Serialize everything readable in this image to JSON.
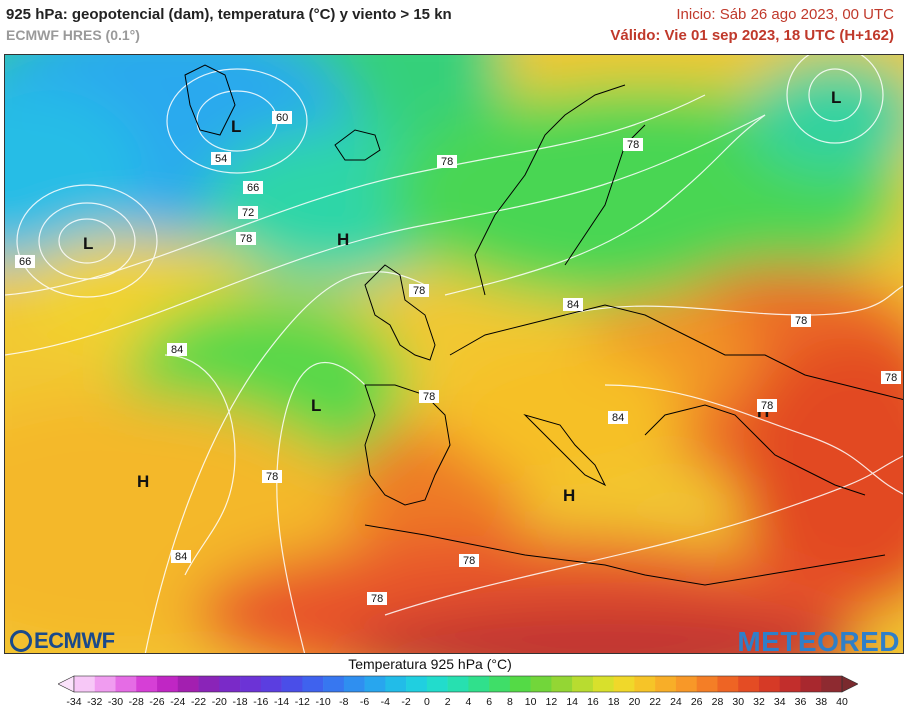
{
  "header": {
    "title": "925 hPa: geopotencial (dam), temperatura (°C) y viento > 15 kn",
    "model": "ECMWF HRES (0.1°)",
    "init": "Inicio: Sáb 26 ago 2023, 00 UTC",
    "valid": "Válido: Vie 01 sep 2023, 18 UTC (H+162)"
  },
  "map": {
    "pressure_centers": [
      "L",
      "L",
      "L",
      "H",
      "L",
      "H",
      "H",
      "H"
    ],
    "contour_labels": [
      "60",
      "54",
      "66",
      "72",
      "78",
      "66",
      "78",
      "84",
      "78",
      "78",
      "84",
      "78",
      "78",
      "84",
      "78",
      "78",
      "78",
      "84",
      "78",
      "78"
    ]
  },
  "logos": {
    "left": "ECMWF",
    "right": "METEORED"
  },
  "colorbar": {
    "title": "Temperatura 925 hPa (°C)",
    "ticks": [
      "-34",
      "-32",
      "-30",
      "-28",
      "-26",
      "-24",
      "-22",
      "-20",
      "-18",
      "-16",
      "-14",
      "-12",
      "-10",
      "-8",
      "-6",
      "-4",
      "-2",
      "0",
      "2",
      "4",
      "6",
      "8",
      "10",
      "12",
      "14",
      "16",
      "18",
      "20",
      "22",
      "24",
      "26",
      "28",
      "30",
      "32",
      "34",
      "36",
      "38",
      "40"
    ],
    "colors": [
      "#f7c8f7",
      "#f09cf0",
      "#e56ce5",
      "#d63fd6",
      "#c026c4",
      "#a31fb0",
      "#8a24b8",
      "#7a2ac8",
      "#6c33d6",
      "#5b3ee0",
      "#4a4ee8",
      "#3f62ee",
      "#3777f0",
      "#2f8ff0",
      "#28a6ee",
      "#22bce8",
      "#20cfe0",
      "#22dccc",
      "#27e0b0",
      "#30e08c",
      "#3fde68",
      "#54da46",
      "#72d63a",
      "#94d634",
      "#b8dc30",
      "#d8e02c",
      "#f0d82a",
      "#f6c428",
      "#f8ae28",
      "#f89828",
      "#f47e26",
      "#ee6424",
      "#e44c24",
      "#d63a26",
      "#c22e2c",
      "#a8282e",
      "#8e2a30"
    ]
  }
}
